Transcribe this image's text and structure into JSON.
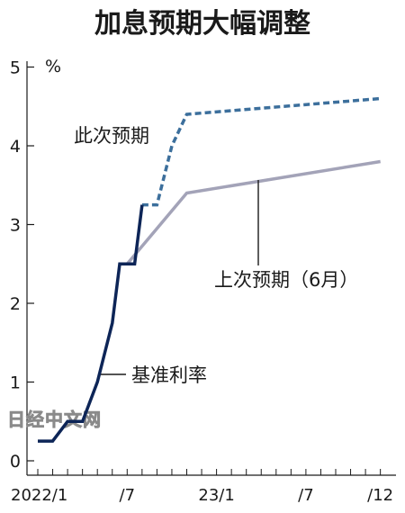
{
  "chart_data": {
    "type": "line",
    "title": "加息预期大幅调整",
    "ylabel": "%",
    "ylim": [
      0,
      5
    ],
    "yticks": [
      "0",
      "1",
      "2",
      "3",
      "4",
      "5"
    ],
    "xticks": [
      "2022/1",
      "/7",
      "23/1",
      "/7",
      "/12"
    ],
    "grid": false,
    "series": [
      {
        "name": "基准利率",
        "color": "#0d2557",
        "style": "solid",
        "points": [
          [
            "2022-01",
            0.25
          ],
          [
            "2022-02",
            0.25
          ],
          [
            "2022-03",
            0.5
          ],
          [
            "2022-04",
            0.5
          ],
          [
            "2022-05",
            1.0
          ],
          [
            "2022-06",
            1.75
          ],
          [
            "2022-06.5",
            2.5
          ],
          [
            "2022-07",
            2.5
          ],
          [
            "2022-07.5",
            2.5
          ],
          [
            "2022-08",
            3.25
          ]
        ]
      },
      {
        "name": "此次预期",
        "color": "#3c6f9c",
        "style": "dashed",
        "points": [
          [
            "2022-08",
            3.25
          ],
          [
            "2022-09",
            3.25
          ],
          [
            "2022-10",
            4.0
          ],
          [
            "2022-11",
            4.4
          ],
          [
            "2023-12",
            4.6
          ]
        ]
      },
      {
        "name": "上次预期（6月）",
        "color": "#a3a3b8",
        "style": "solid",
        "points": [
          [
            "2022-07",
            2.5
          ],
          [
            "2022-11",
            3.4
          ],
          [
            "2023-12",
            3.8
          ]
        ]
      }
    ],
    "annotations": {
      "this_time": "此次预期",
      "last_time": "上次预期（6月）",
      "policy_rate": "基准利率"
    },
    "watermark": "日经中文网"
  }
}
